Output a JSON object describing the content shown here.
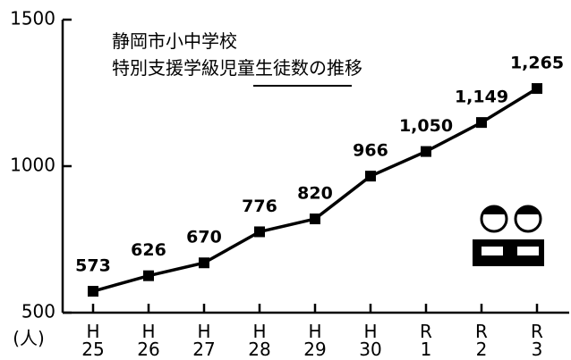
{
  "chart_data": {
    "type": "line",
    "title": "静岡市小中学校\n特別支援学級児童生徒数の推移",
    "y_axis_label": "(人)",
    "categories": [
      "H\n25",
      "H\n26",
      "H\n27",
      "H\n28",
      "H\n29",
      "H\n30",
      "R\n1",
      "R\n2",
      "R\n3"
    ],
    "values": [
      573,
      626,
      670,
      776,
      820,
      966,
      1050,
      1149,
      1265
    ],
    "value_labels": [
      "573",
      "626",
      "670",
      "776",
      "820",
      "966",
      "1,050",
      "1,149",
      "1,265"
    ],
    "color": "#000000",
    "ylim": [
      500,
      1500
    ],
    "yticks": [
      500,
      1000,
      1500
    ],
    "grid": false
  }
}
